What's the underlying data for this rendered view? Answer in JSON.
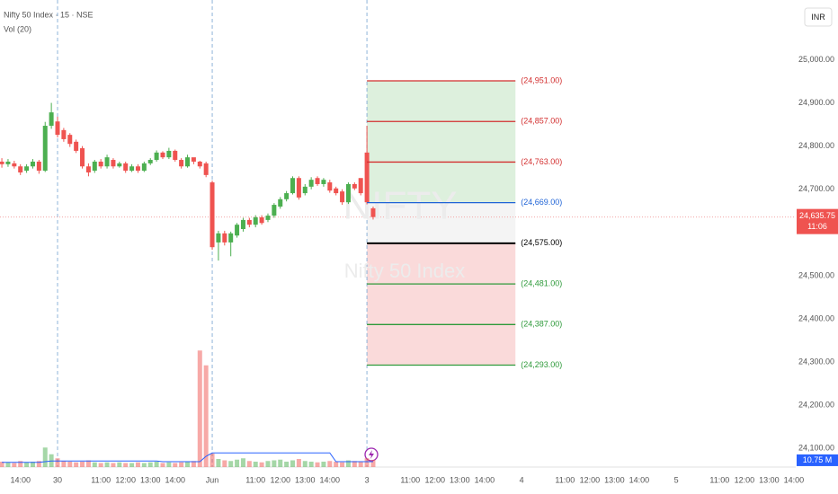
{
  "chart_data": {
    "type": "candlestick",
    "title": "Nifty 50 Index · 15 · NSE",
    "volume_title": "Vol (20)",
    "currency": "INR",
    "watermark": {
      "symbol": "NIFTY",
      "description": "Nifty 50 Index"
    },
    "x": [
      -9,
      -8,
      -7,
      -6,
      -5,
      -4,
      -3,
      -2,
      -1,
      0,
      1,
      2,
      3,
      4,
      5,
      6,
      7,
      8,
      9,
      10,
      11,
      12,
      13,
      14,
      15,
      16,
      17,
      18,
      19,
      20,
      21,
      22,
      23,
      24,
      25,
      26,
      27,
      28,
      29,
      30,
      31,
      32,
      33,
      34,
      35,
      36,
      37,
      38,
      39,
      40,
      41,
      42,
      43,
      44,
      45,
      46,
      47,
      48,
      49,
      50,
      51
    ],
    "open": [
      24764,
      24758,
      24760,
      24753,
      24743,
      24753,
      24764,
      24743,
      24847,
      24857,
      24837,
      24826,
      24810,
      24795,
      24753,
      24743,
      24764,
      24753,
      24768,
      24753,
      24760,
      24743,
      24753,
      24743,
      24760,
      24768,
      24785,
      24774,
      24789,
      24768,
      24753,
      24774,
      24764,
      24760,
      24716,
      24577,
      24598,
      24577,
      24593,
      24608,
      24629,
      24618,
      24635,
      24629,
      24639,
      24660,
      24677,
      24691,
      24726,
      24691,
      24706,
      24726,
      24712,
      24716,
      24702,
      24695,
      24670,
      24712,
      24726,
      24785,
      24656
    ],
    "high": [
      24772,
      24770,
      24766,
      24758,
      24758,
      24770,
      24768,
      24856,
      24900,
      24868,
      24842,
      24830,
      24815,
      24800,
      24760,
      24768,
      24770,
      24780,
      24772,
      24764,
      24764,
      24758,
      24758,
      24764,
      24772,
      24790,
      24788,
      24796,
      24792,
      24772,
      24780,
      24770,
      24766,
      24764,
      24720,
      24604,
      24604,
      24602,
      24622,
      24634,
      24634,
      24640,
      24640,
      24644,
      24668,
      24682,
      24696,
      24730,
      24730,
      24712,
      24728,
      24730,
      24726,
      24722,
      24706,
      24700,
      24716,
      24716,
      24722,
      24847,
      24660
    ],
    "low": [
      24750,
      24752,
      24748,
      24733,
      24738,
      24748,
      24736,
      24740,
      24840,
      24820,
      24810,
      24798,
      24784,
      24748,
      24730,
      24738,
      24748,
      24748,
      24748,
      24750,
      24738,
      24740,
      24738,
      24740,
      24756,
      24764,
      24770,
      24770,
      24764,
      24748,
      24750,
      24758,
      24748,
      24728,
      24560,
      24535,
      24570,
      24545,
      24588,
      24602,
      24612,
      24612,
      24618,
      24624,
      24634,
      24655,
      24672,
      24688,
      24676,
      24686,
      24700,
      24708,
      24706,
      24692,
      24686,
      24664,
      24666,
      24698,
      24686,
      24665,
      24630
    ],
    "close": [
      24758,
      24764,
      24753,
      24739,
      24753,
      24764,
      24743,
      24847,
      24878,
      24826,
      24816,
      24805,
      24789,
      24753,
      24739,
      24764,
      24753,
      24774,
      24753,
      24760,
      24743,
      24753,
      24743,
      24760,
      24768,
      24785,
      24774,
      24789,
      24768,
      24753,
      24774,
      24764,
      24753,
      24733,
      24566,
      24598,
      24577,
      24598,
      24618,
      24629,
      24618,
      24635,
      24622,
      24639,
      24664,
      24677,
      24691,
      24726,
      24681,
      24706,
      24722,
      24712,
      24722,
      24697,
      24691,
      24670,
      24712,
      24702,
      24691,
      24670,
      24635.75
    ],
    "volume": [
      8,
      7,
      6,
      9,
      7,
      8,
      9,
      29,
      19,
      13,
      9,
      8,
      7,
      8,
      10,
      7,
      6,
      7,
      6,
      7,
      6,
      6,
      7,
      6,
      7,
      8,
      6,
      7,
      6,
      7,
      8,
      9,
      173,
      151,
      20,
      12,
      10,
      9,
      11,
      13,
      9,
      8,
      7,
      9,
      10,
      11,
      8,
      10,
      12,
      9,
      8,
      7,
      8,
      9,
      8,
      7,
      10,
      9,
      8,
      13,
      10.75
    ],
    "volume_ma": [
      7,
      7,
      7,
      7,
      7,
      7,
      7,
      8,
      9,
      9,
      9,
      9,
      9,
      9,
      9,
      9,
      9,
      9,
      9,
      9,
      9,
      9,
      9,
      9,
      9,
      9,
      8,
      8,
      8,
      8,
      8,
      8,
      8,
      16,
      21,
      21,
      21,
      21,
      21,
      21,
      21,
      21,
      21,
      21,
      21,
      21,
      21,
      21,
      21,
      21,
      21,
      21,
      21,
      21,
      8,
      8,
      8,
      8,
      8,
      8,
      8
    ],
    "volume_label": {
      "value": 10.75,
      "label": "10.75 M"
    },
    "up_color": "#4caf50",
    "down_color": "#ef5350",
    "ma_color": "#2962ff",
    "ylim": [
      24057.1,
      25138.1
    ],
    "vlim": [
      0,
      180
    ],
    "xlim": [
      -9.3,
      119.3
    ],
    "yticks": [
      {
        "value": 24100,
        "label": "24,100.00"
      },
      {
        "value": 24200,
        "label": "24,200.00"
      },
      {
        "value": 24300,
        "label": "24,300.00"
      },
      {
        "value": 24400,
        "label": "24,400.00"
      },
      {
        "value": 24500,
        "label": "24,500.00"
      },
      {
        "value": 24700,
        "label": "24,700.00"
      },
      {
        "value": 24800,
        "label": "24,800.00"
      },
      {
        "value": 24900,
        "label": "24,900.00"
      },
      {
        "value": 25000,
        "label": "25,000.00"
      }
    ],
    "xticks": [
      {
        "value": -6,
        "label": "14:00"
      },
      {
        "value": 0,
        "label": "30"
      },
      {
        "value": 7,
        "label": "11:00"
      },
      {
        "value": 11,
        "label": "12:00"
      },
      {
        "value": 15,
        "label": "13:00"
      },
      {
        "value": 19,
        "label": "14:00"
      },
      {
        "value": 25,
        "label": "Jun"
      },
      {
        "value": 32,
        "label": "11:00"
      },
      {
        "value": 36,
        "label": "12:00"
      },
      {
        "value": 40,
        "label": "13:00"
      },
      {
        "value": 44,
        "label": "14:00"
      },
      {
        "value": 50,
        "label": "3"
      },
      {
        "value": 57,
        "label": "11:00"
      },
      {
        "value": 61,
        "label": "12:00"
      },
      {
        "value": 65,
        "label": "13:00"
      },
      {
        "value": 69,
        "label": "14:00"
      },
      {
        "value": 75,
        "label": "4"
      },
      {
        "value": 82,
        "label": "11:00"
      },
      {
        "value": 86,
        "label": "12:00"
      },
      {
        "value": 90,
        "label": "13:00"
      },
      {
        "value": 94,
        "label": "14:00"
      },
      {
        "value": 100,
        "label": "5"
      },
      {
        "value": 107,
        "label": "11:00"
      },
      {
        "value": 111,
        "label": "12:00"
      },
      {
        "value": 115,
        "label": "13:00"
      },
      {
        "value": 119,
        "label": "14:00"
      }
    ],
    "levels": [
      {
        "value": 24951,
        "label": "(24,951.00)",
        "color": "#d32f2f"
      },
      {
        "value": 24857,
        "label": "(24,857.00)",
        "color": "#d32f2f"
      },
      {
        "value": 24763,
        "label": "(24,763.00)",
        "color": "#d32f2f"
      },
      {
        "value": 24669,
        "label": "(24,669.00)",
        "color": "#1e63d6"
      },
      {
        "value": 24575,
        "label": "(24,575.00)",
        "color": "#000000"
      },
      {
        "value": 24481,
        "label": "(24,481.00)",
        "color": "#2e9a3a"
      },
      {
        "value": 24387,
        "label": "(24,387.00)",
        "color": "#2e9a3a"
      },
      {
        "value": 24293,
        "label": "(24,293.00)",
        "color": "#2e9a3a"
      }
    ],
    "level_span": [
      50,
      74
    ],
    "current_price": {
      "value": 24635.75,
      "label": "24,635.75"
    },
    "countdown": "11:06"
  }
}
